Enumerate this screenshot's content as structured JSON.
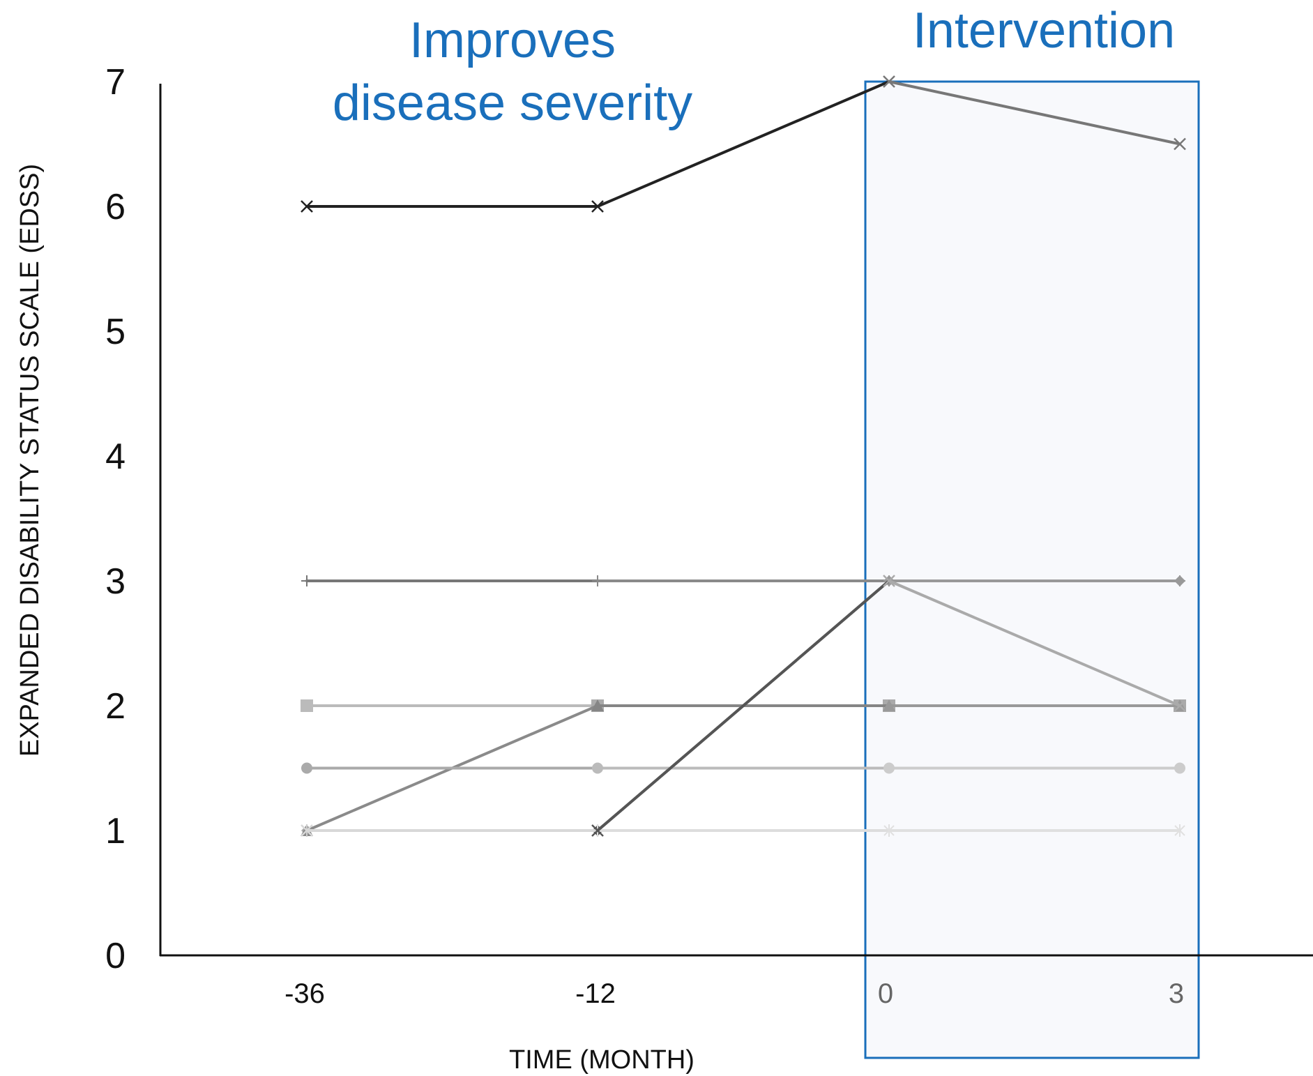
{
  "chart_data": {
    "type": "line",
    "xlabel": "TIME (MONTH)",
    "ylabel": "EXPANDED DISABILITY STATUS SCALE (EDSS)",
    "categories": [
      "-36",
      "-12",
      "0",
      "3"
    ],
    "ylim": [
      0,
      7
    ],
    "yticks": [
      "0",
      "1",
      "2",
      "3",
      "4",
      "5",
      "6",
      "7"
    ],
    "grid": false,
    "legend": "none",
    "annotations": {
      "left": [
        "Improves",
        "disease severity"
      ],
      "right": "Intervention"
    },
    "highlight_region": {
      "from": "0",
      "to": "3",
      "color": "#f8f9fc",
      "border": "#1a6fbb"
    },
    "colors": {
      "annotation": "#1a6fbb",
      "axis": "#111111"
    },
    "series": [
      {
        "values": [
          6,
          6,
          7,
          6.5
        ],
        "marker": "x",
        "colors": [
          "#222222",
          "#222222",
          "#777777"
        ]
      },
      {
        "values": [
          3,
          3,
          3,
          3
        ],
        "marker": "plus",
        "colors": [
          "#777777",
          "#8a8a8a",
          "#999999"
        ]
      },
      {
        "values": [
          1,
          1,
          3,
          3
        ],
        "marker": "diamond",
        "colors": [
          "#aaaaaa",
          "#555555",
          "#999999"
        ]
      },
      {
        "values": [
          2,
          2,
          2,
          2
        ],
        "marker": "square",
        "colors": [
          "#bbbbbb",
          "#aaaaaa",
          "#aaaaaa"
        ]
      },
      {
        "values": [
          1,
          2,
          2,
          2
        ],
        "marker": "triangle",
        "colors": [
          "#8a8a8a",
          "#858585",
          "#999999"
        ]
      },
      {
        "values": [
          1.5,
          1.5,
          1.5,
          1.5
        ],
        "marker": "circle",
        "colors": [
          "#aaaaaa",
          "#bbbbbb",
          "#cccccc"
        ]
      },
      {
        "values": [
          1,
          1,
          1,
          1
        ],
        "marker": "star",
        "colors": [
          "#cccccc",
          "#dddddd",
          "#e0e0e0"
        ]
      },
      {
        "values": [
          1,
          1,
          3,
          2
        ],
        "marker": "x",
        "colors": [
          "#d8d8d8",
          "#555555",
          "#aaaaaa"
        ]
      }
    ]
  }
}
